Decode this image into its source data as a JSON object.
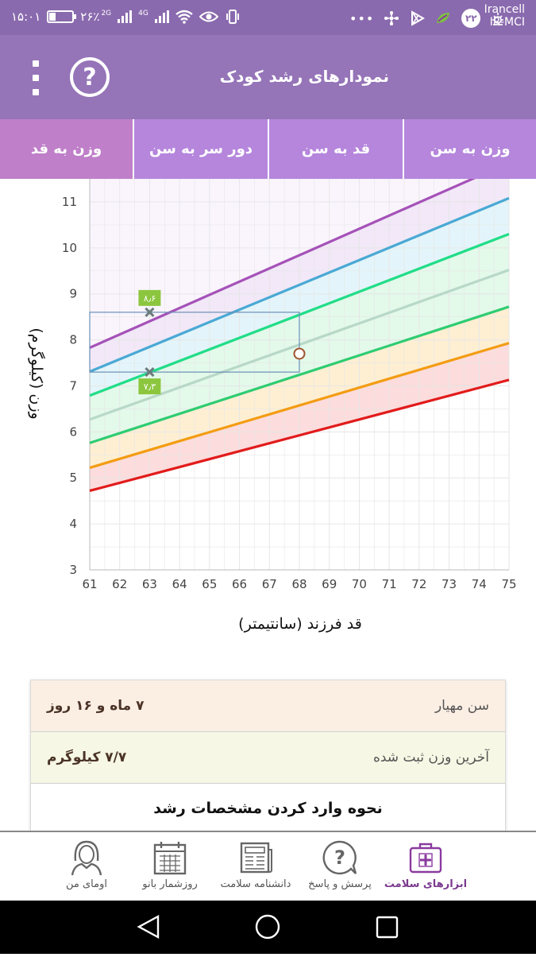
{
  "status": {
    "time": "۱۵:۰۱",
    "battery": "۲۶٪",
    "network_2g": "2G",
    "network_4g": "4G",
    "badge": "۲۲",
    "carrier_line1": "Irancell",
    "carrier_line2": "IR-MCI",
    "battery_level": 0.26
  },
  "appbar": {
    "title": "نمودارهای رشد کودک",
    "help_label": "?"
  },
  "tabs": [
    {
      "label": "وزن به قد",
      "active": true
    },
    {
      "label": "دور سر به سن",
      "active": false
    },
    {
      "label": "قد به سن",
      "active": false
    },
    {
      "label": "وزن به سن",
      "active": false
    }
  ],
  "chart_data": {
    "type": "line",
    "xlabel": "قد فرزند (سانتیمتر)",
    "ylabel": "وزن (کیلوگرم)",
    "xlim": [
      61,
      75
    ],
    "ylim": [
      3,
      11.5
    ],
    "xticks": [
      61,
      62,
      63,
      64,
      65,
      66,
      67,
      68,
      69,
      70,
      71,
      72,
      73,
      74,
      75
    ],
    "yticks": [
      3,
      4,
      5,
      6,
      7,
      8,
      9,
      10,
      11
    ],
    "grid": true,
    "x": [
      61,
      75
    ],
    "series": [
      {
        "color": "#e21b1b",
        "values": [
          4.72,
          7.13
        ]
      },
      {
        "color": "#f39c12",
        "values": [
          5.22,
          7.93
        ]
      },
      {
        "color": "#2ecc71",
        "values": [
          5.76,
          8.72
        ]
      },
      {
        "color": "#b8d8c8",
        "values": [
          6.27,
          9.52
        ]
      },
      {
        "color": "#22dd88",
        "values": [
          6.79,
          10.3
        ]
      },
      {
        "color": "#4aa9d4",
        "values": [
          7.31,
          11.08
        ]
      },
      {
        "color": "#a552b8",
        "values": [
          7.83,
          11.85
        ]
      }
    ],
    "bands": [
      {
        "color": "#fbd0d0"
      },
      {
        "color": "#fde9c4"
      },
      {
        "color": "#d9f7e3"
      },
      {
        "color": "#d9f7e3"
      },
      {
        "color": "#d9f1f8"
      },
      {
        "color": "#ede0f6"
      }
    ],
    "point": {
      "x": 68,
      "y": 7.7
    },
    "markers": [
      {
        "x": 63,
        "y": 8.6,
        "label": "۸٫۶"
      },
      {
        "x": 63,
        "y": 7.3,
        "label": "۷٫۳"
      }
    ],
    "highlight": {
      "x_from": 61,
      "x_to": 68,
      "y_from": 7.3,
      "y_to": 8.6
    }
  },
  "info": {
    "age_label": "سن مهیار",
    "age_value": "۷ ماه و ۱۶ روز",
    "weight_label": "آخرین وزن ثبت شده",
    "weight_value": "۷/۷ کیلوگرم",
    "howto_label": "نحوه وارد کردن مشخصات رشد"
  },
  "nav": [
    {
      "label": "ابزارهای سلامت",
      "icon": "health-kit-icon",
      "active": true
    },
    {
      "label": "پرسش و پاسخ",
      "icon": "question-bubble-icon",
      "active": false
    },
    {
      "label": "دانشنامه سلامت",
      "icon": "newspaper-icon",
      "active": false
    },
    {
      "label": "روزشمار بانو",
      "icon": "calendar-icon",
      "active": false
    },
    {
      "label": "اومای من",
      "icon": "woman-avatar-icon",
      "active": false
    }
  ]
}
